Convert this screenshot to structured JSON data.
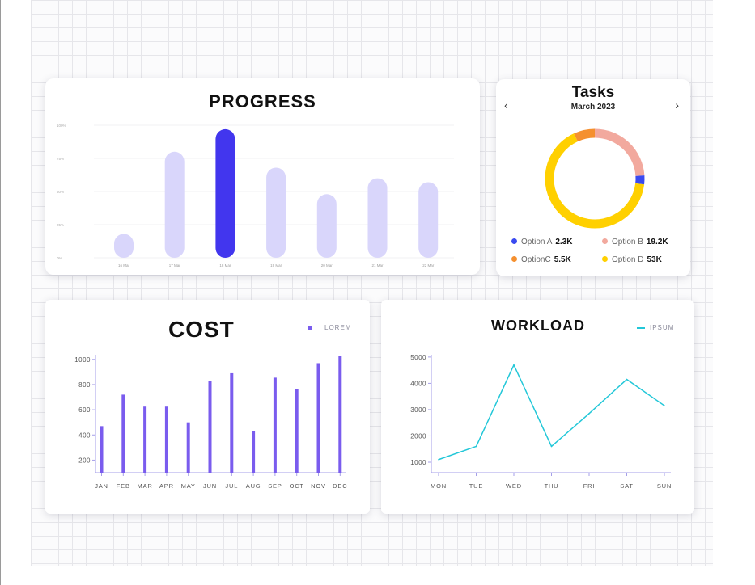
{
  "progress": {
    "title": "PROGRESS",
    "chart_data": {
      "type": "bar",
      "categories": [
        "16 Mar",
        "17 Mar",
        "18 Mar",
        "19 Mar",
        "20 Mar",
        "21 Mar",
        "22 Mar"
      ],
      "values": [
        18,
        80,
        97,
        68,
        48,
        60,
        57
      ],
      "highlight_index": 2,
      "yticks": [
        "0%",
        "25%",
        "50%",
        "75%",
        "100%"
      ],
      "ylim": [
        0,
        100
      ],
      "colors": {
        "normal": "#d9d6fb",
        "highlight": "#4236ee"
      }
    }
  },
  "tasks": {
    "title": "Tasks",
    "month": "March 2023",
    "prev_icon": "chevron-left-icon",
    "next_icon": "chevron-right-icon",
    "chart_data": {
      "type": "pie",
      "slices": [
        {
          "label": "Option A",
          "display": "2.3K",
          "value": 2.3,
          "color": "#3a4af0"
        },
        {
          "label": "Option B",
          "display": "19.2K",
          "value": 19.2,
          "color": "#f2a99e"
        },
        {
          "label": "OptionC",
          "display": "5.5K",
          "value": 5.5,
          "color": "#f5902f"
        },
        {
          "label": "Option D",
          "display": "53K",
          "value": 53,
          "color": "#ffd000"
        }
      ]
    }
  },
  "cost": {
    "title": "COST",
    "legend": "LOREM",
    "chart_data": {
      "type": "bar",
      "series": [
        {
          "name": "LOREM",
          "values": [
            470,
            720,
            625,
            625,
            500,
            830,
            890,
            430,
            855,
            765,
            970,
            1030
          ]
        }
      ],
      "categories": [
        "JAN",
        "FEB",
        "MAR",
        "APR",
        "MAY",
        "JUN",
        "JUL",
        "AUG",
        "SEP",
        "OCT",
        "NOV",
        "DEC"
      ],
      "yticks": [
        200,
        400,
        600,
        800,
        1000
      ],
      "ylim": [
        100,
        1050
      ],
      "color": "#7a5cee"
    }
  },
  "workload": {
    "title": "WORKLOAD",
    "legend": "IPSUM",
    "chart_data": {
      "type": "line",
      "series": [
        {
          "name": "IPSUM",
          "values": [
            1100,
            1600,
            4700,
            1600,
            2850,
            4150,
            3150
          ]
        }
      ],
      "categories": [
        "MON",
        "TUE",
        "WED",
        "THU",
        "FRI",
        "SAT",
        "SUN"
      ],
      "yticks": [
        1000,
        2000,
        3000,
        4000,
        5000
      ],
      "ylim": [
        600,
        5150
      ],
      "color": "#22c7d8"
    }
  }
}
